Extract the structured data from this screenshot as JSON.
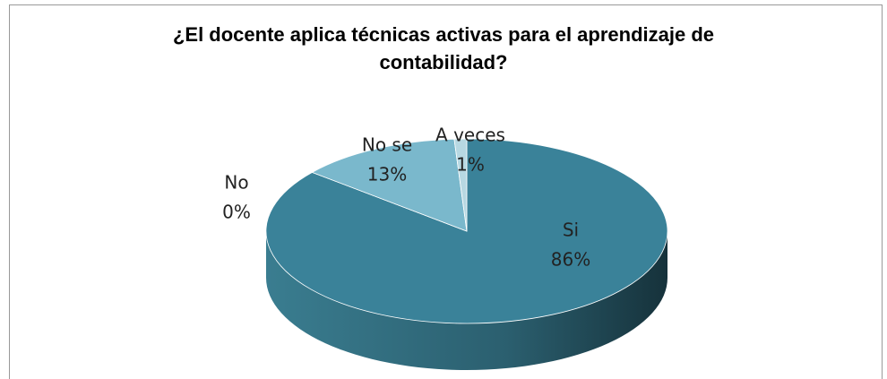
{
  "chart_data": {
    "type": "pie",
    "title": [
      "¿El docente aplica técnicas activas para el aprendizaje de",
      "contabilidad?"
    ],
    "categories": [
      "Si",
      "No",
      "No se",
      "A veces"
    ],
    "values": [
      86,
      0,
      13,
      1
    ],
    "value_labels": [
      "86%",
      "0%",
      "13%",
      "1%"
    ],
    "colors": [
      "#3a8299",
      "#2f6f84",
      "#7ab8cc",
      "#b7d8e2"
    ],
    "three_d": true
  }
}
